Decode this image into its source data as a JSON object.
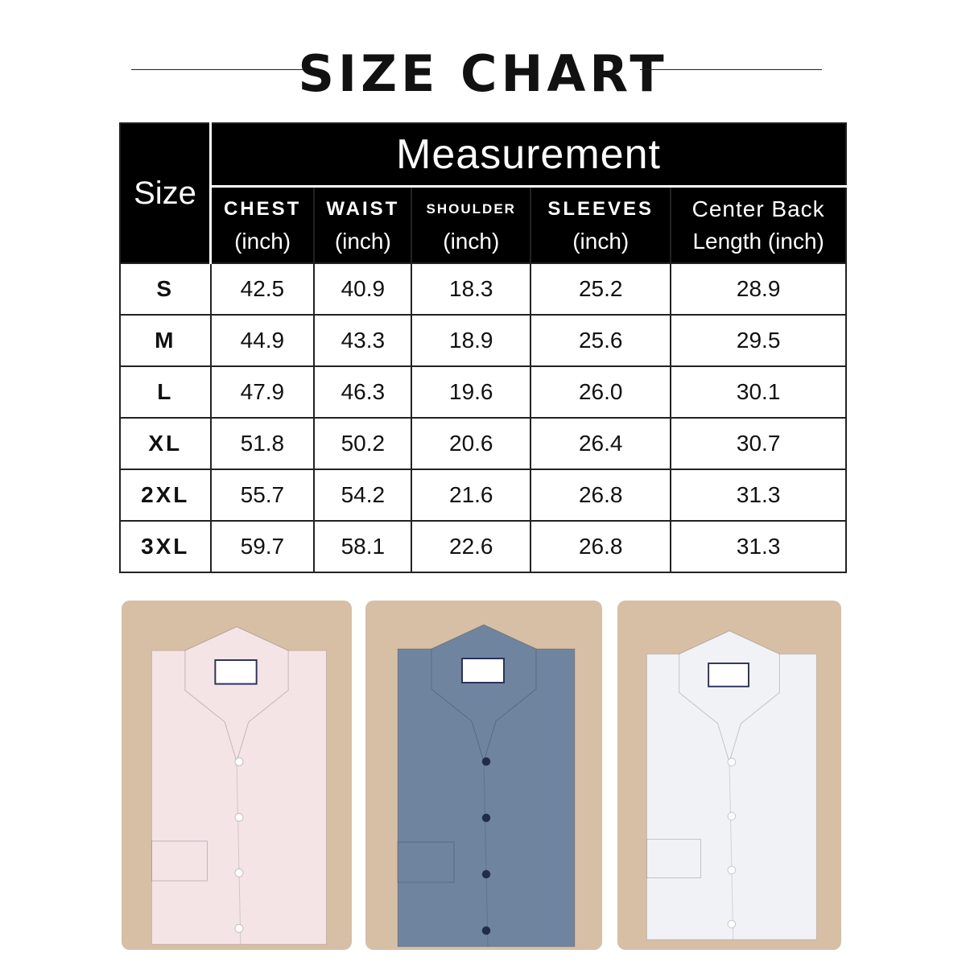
{
  "title": "SIZE CHART",
  "table": {
    "size_header": "Size",
    "group_header": "Measurement",
    "columns": [
      {
        "name": "CHEST",
        "unit": "(inch)"
      },
      {
        "name": "WAIST",
        "unit": "(inch)"
      },
      {
        "name": "SHOULDER",
        "unit": "(inch)"
      },
      {
        "name": "SLEEVES",
        "unit": "(inch)"
      },
      {
        "name": "Center Back",
        "unit": "Length (inch)"
      }
    ],
    "rows": [
      {
        "size": "S",
        "values": [
          "42.5",
          "40.9",
          "18.3",
          "25.2",
          "28.9"
        ]
      },
      {
        "size": "M",
        "values": [
          "44.9",
          "43.3",
          "18.9",
          "25.6",
          "29.5"
        ]
      },
      {
        "size": "L",
        "values": [
          "47.9",
          "46.3",
          "19.6",
          "26.0",
          "30.1"
        ]
      },
      {
        "size": "XL",
        "values": [
          "51.8",
          "50.2",
          "20.6",
          "26.4",
          "30.7"
        ]
      },
      {
        "size": "2XL",
        "values": [
          "55.7",
          "54.2",
          "21.6",
          "26.8",
          "31.3"
        ]
      },
      {
        "size": "3XL",
        "values": [
          "59.7",
          "58.1",
          "22.6",
          "26.8",
          "31.3"
        ]
      }
    ]
  },
  "shirts": [
    {
      "color": "pink-check",
      "fill": "#f4e4e6",
      "button": "#ffffff"
    },
    {
      "color": "blue",
      "fill": "#6f859f",
      "button": "#1f2c4a"
    },
    {
      "color": "white-stripe",
      "fill": "#f1f2f6",
      "button": "#ffffff"
    }
  ]
}
